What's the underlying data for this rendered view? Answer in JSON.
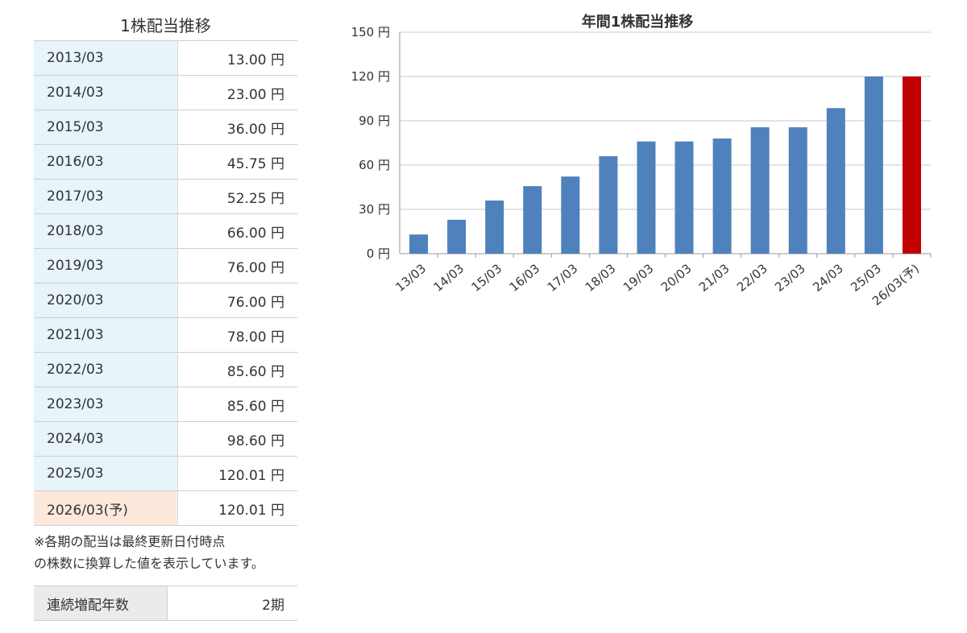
{
  "table": {
    "title": "1株配当推移",
    "rows": [
      {
        "period": "2013/03",
        "value": "13.00 円"
      },
      {
        "period": "2014/03",
        "value": "23.00 円"
      },
      {
        "period": "2015/03",
        "value": "36.00 円"
      },
      {
        "period": "2016/03",
        "value": "45.75 円"
      },
      {
        "period": "2017/03",
        "value": "52.25 円"
      },
      {
        "period": "2018/03",
        "value": "66.00 円"
      },
      {
        "period": "2019/03",
        "value": "76.00 円"
      },
      {
        "period": "2020/03",
        "value": "76.00 円"
      },
      {
        "period": "2021/03",
        "value": "78.00 円"
      },
      {
        "period": "2022/03",
        "value": "85.60 円"
      },
      {
        "period": "2023/03",
        "value": "85.60 円"
      },
      {
        "period": "2024/03",
        "value": "98.60 円"
      },
      {
        "period": "2025/03",
        "value": "120.01 円"
      },
      {
        "period": "2026/03(予)",
        "value": "120.01 円",
        "forecast": true
      }
    ],
    "note_line1": "※各期の配当は最終更新日付時点",
    "note_line2": "の株数に換算した値を表示しています。",
    "colors": {
      "period_bg": "#e7f4fa",
      "forecast_bg": "#fde8dc"
    }
  },
  "streak": {
    "label": "連続増配年数",
    "value": "2期"
  },
  "chart_data": {
    "type": "bar",
    "title": "年間1株配当推移",
    "categories": [
      "13/03",
      "14/03",
      "15/03",
      "16/03",
      "17/03",
      "18/03",
      "19/03",
      "20/03",
      "21/03",
      "22/03",
      "23/03",
      "24/03",
      "25/03",
      "26/03(予)"
    ],
    "values": [
      13.0,
      23.0,
      36.0,
      45.75,
      52.25,
      66.0,
      76.0,
      76.0,
      78.0,
      85.6,
      85.6,
      98.6,
      120.01,
      120.01
    ],
    "forecast": [
      false,
      false,
      false,
      false,
      false,
      false,
      false,
      false,
      false,
      false,
      false,
      false,
      false,
      true
    ],
    "ylim": [
      0,
      150
    ],
    "yticks": [
      0,
      30,
      60,
      90,
      120,
      150
    ],
    "ytick_labels": [
      "0 円",
      "30 円",
      "60 円",
      "90 円",
      "120 円",
      "150 円"
    ],
    "grid": true,
    "colors": {
      "bar": "#4f81bd",
      "forecast_bar": "#c00000",
      "grid": "#c8c8c8"
    }
  }
}
